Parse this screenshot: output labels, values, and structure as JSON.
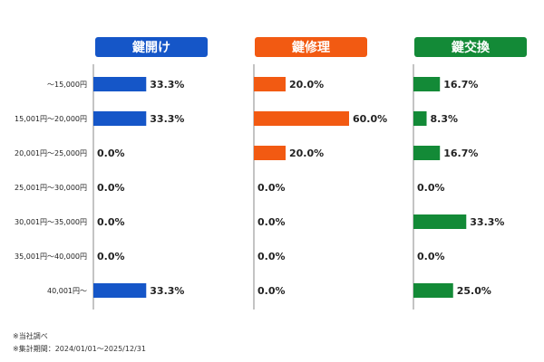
{
  "chart_data": {
    "type": "bar",
    "orientation": "horizontal",
    "categories": [
      "～15,000円",
      "15,001円～20,000円",
      "20,001円～25,000円",
      "25,001円～30,000円",
      "30,001円～35,000円",
      "35,001円～40,000円",
      "40,001円～"
    ],
    "series": [
      {
        "name": "鍵開け",
        "color": "#1556c8",
        "values": [
          33.3,
          33.3,
          0.0,
          0.0,
          0.0,
          0.0,
          33.3
        ],
        "labels": [
          "33.3%",
          "33.3%",
          "0.0%",
          "0.0%",
          "0.0%",
          "0.0%",
          "33.3%"
        ]
      },
      {
        "name": "鍵修理",
        "color": "#f25a12",
        "values": [
          20.0,
          60.0,
          20.0,
          0.0,
          0.0,
          0.0,
          0.0
        ],
        "labels": [
          "20.0%",
          "60.0%",
          "20.0%",
          "0.0%",
          "0.0%",
          "0.0%",
          "0.0%"
        ]
      },
      {
        "name": "鍵交換",
        "color": "#138a37",
        "values": [
          16.7,
          8.3,
          16.7,
          0.0,
          33.3,
          0.0,
          25.0
        ],
        "labels": [
          "16.7%",
          "8.3%",
          "16.7%",
          "0.0%",
          "33.3%",
          "0.0%",
          "25.0%"
        ]
      }
    ],
    "xlim": [
      0,
      100
    ],
    "grid": false,
    "legend": "none"
  },
  "notes": [
    "※当社調べ",
    "※集計期間：2024/01/01～2025/12/31"
  ]
}
